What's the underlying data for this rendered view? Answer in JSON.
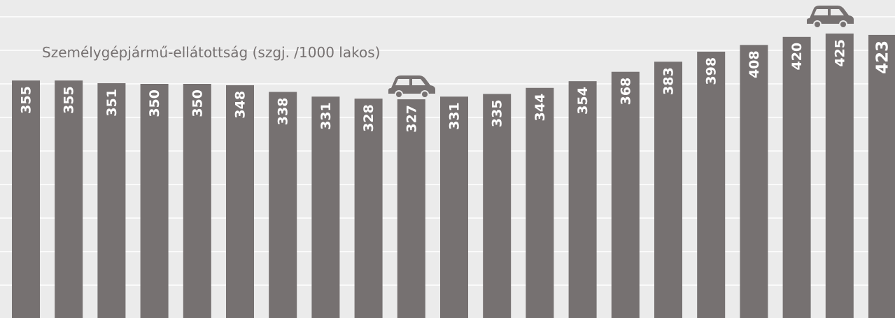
{
  "chart_data": {
    "type": "bar",
    "title": "Személygépjármű-ellátottság (szgj. /1000 lakos)",
    "values": [
      355,
      355,
      351,
      350,
      350,
      348,
      338,
      331,
      328,
      327,
      331,
      335,
      344,
      354,
      368,
      383,
      398,
      408,
      420,
      425,
      423
    ],
    "color": "#767171",
    "ylim": [
      0,
      475
    ],
    "yticks": [
      0,
      50,
      100,
      150,
      200,
      250,
      300,
      350,
      400,
      450
    ],
    "grid": true
  }
}
